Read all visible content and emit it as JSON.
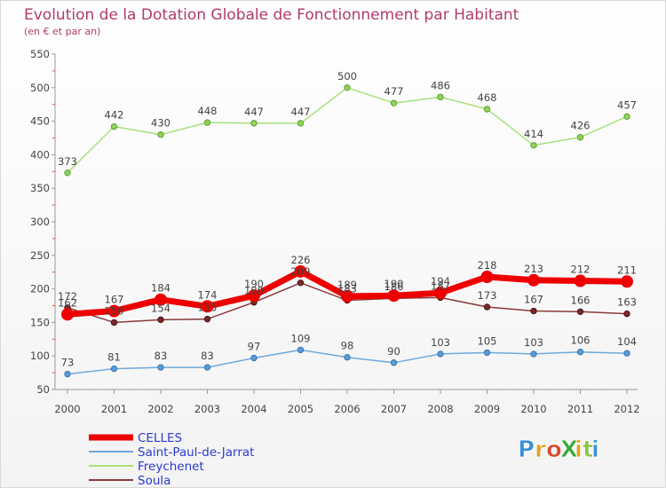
{
  "chart_data": {
    "type": "line",
    "title": "Evolution de la Dotation Globale de Fonctionnement par Habitant",
    "subtitle": "(en € et par an)",
    "categories": [
      "2000",
      "2001",
      "2002",
      "2003",
      "2004",
      "2005",
      "2006",
      "2007",
      "2008",
      "2009",
      "2010",
      "2011",
      "2012"
    ],
    "ylim": [
      50,
      550
    ],
    "yticks": [
      50,
      100,
      150,
      200,
      250,
      300,
      350,
      400,
      450,
      500,
      550
    ],
    "grid": false,
    "legend_position": "bottom-left",
    "series": [
      {
        "name": "CELLES",
        "color": "#ee0000",
        "values": [
          162,
          167,
          184,
          174,
          190,
          226,
          189,
          190,
          194,
          218,
          213,
          212,
          211
        ]
      },
      {
        "name": "Saint-Paul-de-Jarrat",
        "color": "#5b9bd5",
        "values": [
          73,
          81,
          83,
          83,
          97,
          109,
          98,
          90,
          103,
          105,
          103,
          106,
          104
        ]
      },
      {
        "name": "Freychenet",
        "color": "#8fd35a",
        "values": [
          373,
          442,
          430,
          448,
          447,
          447,
          500,
          477,
          486,
          468,
          414,
          426,
          457
        ]
      },
      {
        "name": "Soula",
        "color": "#7a2828",
        "values": [
          172,
          150,
          154,
          155,
          180,
          209,
          183,
          186,
          187,
          173,
          167,
          166,
          163
        ]
      }
    ]
  },
  "logo": {
    "text": "ProXiti"
  }
}
